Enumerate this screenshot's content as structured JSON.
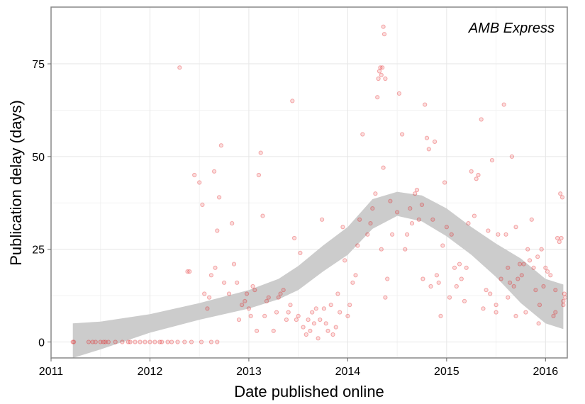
{
  "chart_data": {
    "type": "scatter",
    "annotation": "AMB Express",
    "xlabel": "Date published online",
    "ylabel": "Publication delay (days)",
    "x_ticks": [
      {
        "value": 2011,
        "label": "2011"
      },
      {
        "value": 2012,
        "label": "2012"
      },
      {
        "value": 2013,
        "label": "2013"
      },
      {
        "value": 2014,
        "label": "2014"
      },
      {
        "value": 2015,
        "label": "2015"
      },
      {
        "value": 2016,
        "label": "2016"
      }
    ],
    "y_ticks": [
      {
        "value": 0,
        "label": "0"
      },
      {
        "value": 25,
        "label": "25"
      },
      {
        "value": 50,
        "label": "50"
      },
      {
        "value": 75,
        "label": "75"
      }
    ],
    "xlim": [
      2011.0,
      2016.22
    ],
    "ylim": [
      -4.3,
      90.3
    ],
    "grid": true,
    "point_color": "#e31a1c",
    "band_color": "#cccccc",
    "points": [
      [
        2011.22,
        0
      ],
      [
        2011.23,
        0
      ],
      [
        2011.38,
        0
      ],
      [
        2011.42,
        0
      ],
      [
        2011.45,
        0
      ],
      [
        2011.5,
        0
      ],
      [
        2011.53,
        0
      ],
      [
        2011.55,
        0
      ],
      [
        2011.58,
        0
      ],
      [
        2011.65,
        0
      ],
      [
        2011.72,
        0
      ],
      [
        2011.78,
        0
      ],
      [
        2011.8,
        0
      ],
      [
        2011.85,
        0
      ],
      [
        2011.9,
        0
      ],
      [
        2011.95,
        0
      ],
      [
        2012.0,
        0
      ],
      [
        2012.05,
        0
      ],
      [
        2012.1,
        0
      ],
      [
        2012.12,
        0
      ],
      [
        2012.18,
        0
      ],
      [
        2012.22,
        0
      ],
      [
        2012.28,
        0
      ],
      [
        2012.35,
        0
      ],
      [
        2012.42,
        0
      ],
      [
        2012.52,
        0
      ],
      [
        2012.62,
        0
      ],
      [
        2012.68,
        0
      ],
      [
        2012.3,
        74
      ],
      [
        2012.38,
        19
      ],
      [
        2012.4,
        19
      ],
      [
        2012.45,
        45
      ],
      [
        2012.5,
        43
      ],
      [
        2012.53,
        37
      ],
      [
        2012.55,
        13
      ],
      [
        2012.58,
        9
      ],
      [
        2012.6,
        12
      ],
      [
        2012.62,
        18
      ],
      [
        2012.65,
        46
      ],
      [
        2012.66,
        20
      ],
      [
        2012.68,
        30
      ],
      [
        2012.7,
        39
      ],
      [
        2012.72,
        53
      ],
      [
        2012.75,
        16
      ],
      [
        2012.8,
        13
      ],
      [
        2012.83,
        32
      ],
      [
        2012.85,
        21
      ],
      [
        2012.88,
        16
      ],
      [
        2012.9,
        6
      ],
      [
        2012.93,
        10
      ],
      [
        2012.96,
        11
      ],
      [
        2012.98,
        13
      ],
      [
        2013.0,
        9
      ],
      [
        2013.02,
        7
      ],
      [
        2013.04,
        15
      ],
      [
        2013.06,
        14
      ],
      [
        2013.08,
        3
      ],
      [
        2013.1,
        45
      ],
      [
        2013.12,
        51
      ],
      [
        2013.14,
        34
      ],
      [
        2013.16,
        7
      ],
      [
        2013.18,
        11
      ],
      [
        2013.2,
        12
      ],
      [
        2013.25,
        3
      ],
      [
        2013.28,
        8
      ],
      [
        2013.3,
        12
      ],
      [
        2013.32,
        13
      ],
      [
        2013.35,
        14
      ],
      [
        2013.38,
        6
      ],
      [
        2013.4,
        8
      ],
      [
        2013.42,
        10
      ],
      [
        2013.44,
        65
      ],
      [
        2013.46,
        28
      ],
      [
        2013.48,
        6
      ],
      [
        2013.5,
        7
      ],
      [
        2013.52,
        24
      ],
      [
        2013.55,
        4
      ],
      [
        2013.58,
        2
      ],
      [
        2013.6,
        6
      ],
      [
        2013.62,
        3
      ],
      [
        2013.64,
        8
      ],
      [
        2013.66,
        5
      ],
      [
        2013.68,
        9
      ],
      [
        2013.7,
        1
      ],
      [
        2013.72,
        6
      ],
      [
        2013.74,
        33
      ],
      [
        2013.76,
        9
      ],
      [
        2013.78,
        5
      ],
      [
        2013.8,
        3
      ],
      [
        2013.83,
        10
      ],
      [
        2013.85,
        2
      ],
      [
        2013.88,
        4
      ],
      [
        2013.9,
        13
      ],
      [
        2013.92,
        8
      ],
      [
        2013.95,
        31
      ],
      [
        2013.97,
        22
      ],
      [
        2014.0,
        7
      ],
      [
        2014.02,
        10
      ],
      [
        2014.05,
        16
      ],
      [
        2014.08,
        18
      ],
      [
        2014.1,
        26
      ],
      [
        2014.12,
        33
      ],
      [
        2014.15,
        56
      ],
      [
        2014.2,
        29
      ],
      [
        2014.23,
        32
      ],
      [
        2014.25,
        36
      ],
      [
        2014.28,
        40
      ],
      [
        2014.3,
        66
      ],
      [
        2014.31,
        71
      ],
      [
        2014.32,
        73
      ],
      [
        2014.33,
        74
      ],
      [
        2014.34,
        72
      ],
      [
        2014.35,
        74
      ],
      [
        2014.36,
        85
      ],
      [
        2014.37,
        83
      ],
      [
        2014.38,
        71
      ],
      [
        2014.36,
        47
      ],
      [
        2014.34,
        25
      ],
      [
        2014.38,
        12
      ],
      [
        2014.4,
        17
      ],
      [
        2014.43,
        38
      ],
      [
        2014.45,
        29
      ],
      [
        2014.5,
        35
      ],
      [
        2014.52,
        67
      ],
      [
        2014.55,
        56
      ],
      [
        2014.58,
        25
      ],
      [
        2014.6,
        29
      ],
      [
        2014.63,
        36
      ],
      [
        2014.65,
        32
      ],
      [
        2014.68,
        40
      ],
      [
        2014.7,
        41
      ],
      [
        2014.72,
        33
      ],
      [
        2014.75,
        37
      ],
      [
        2014.76,
        17
      ],
      [
        2014.78,
        64
      ],
      [
        2014.8,
        55
      ],
      [
        2014.82,
        52
      ],
      [
        2014.84,
        15
      ],
      [
        2014.86,
        33
      ],
      [
        2014.88,
        54
      ],
      [
        2014.9,
        18
      ],
      [
        2014.92,
        16
      ],
      [
        2014.94,
        7
      ],
      [
        2014.96,
        26
      ],
      [
        2014.98,
        43
      ],
      [
        2015.0,
        31
      ],
      [
        2015.03,
        12
      ],
      [
        2015.05,
        29
      ],
      [
        2015.08,
        20
      ],
      [
        2015.1,
        15
      ],
      [
        2015.13,
        21
      ],
      [
        2015.15,
        17
      ],
      [
        2015.18,
        11
      ],
      [
        2015.2,
        20
      ],
      [
        2015.22,
        32
      ],
      [
        2015.25,
        46
      ],
      [
        2015.28,
        34
      ],
      [
        2015.3,
        44
      ],
      [
        2015.32,
        45
      ],
      [
        2015.35,
        60
      ],
      [
        2015.37,
        9
      ],
      [
        2015.4,
        14
      ],
      [
        2015.42,
        30
      ],
      [
        2015.44,
        13
      ],
      [
        2015.46,
        49
      ],
      [
        2015.5,
        8
      ],
      [
        2015.52,
        29
      ],
      [
        2015.55,
        17
      ],
      [
        2015.58,
        64
      ],
      [
        2015.6,
        29
      ],
      [
        2015.62,
        20
      ],
      [
        2015.64,
        16
      ],
      [
        2015.66,
        50
      ],
      [
        2015.68,
        15
      ],
      [
        2015.7,
        31
      ],
      [
        2015.72,
        17
      ],
      [
        2015.74,
        21
      ],
      [
        2015.76,
        18
      ],
      [
        2015.78,
        21
      ],
      [
        2015.8,
        8
      ],
      [
        2015.82,
        25
      ],
      [
        2015.84,
        22
      ],
      [
        2015.86,
        33
      ],
      [
        2015.88,
        20
      ],
      [
        2015.9,
        14
      ],
      [
        2015.92,
        23
      ],
      [
        2015.94,
        10
      ],
      [
        2015.96,
        25
      ],
      [
        2015.98,
        15
      ],
      [
        2016.0,
        20
      ],
      [
        2016.02,
        19
      ],
      [
        2016.05,
        18
      ],
      [
        2016.08,
        7
      ],
      [
        2016.1,
        14
      ],
      [
        2016.12,
        28
      ],
      [
        2016.14,
        27
      ],
      [
        2016.15,
        40
      ],
      [
        2016.16,
        28
      ],
      [
        2016.17,
        39
      ],
      [
        2016.18,
        11
      ],
      [
        2016.19,
        13
      ],
      [
        2016.2,
        12
      ],
      [
        2016.18,
        10
      ],
      [
        2016.1,
        8
      ],
      [
        2015.93,
        5
      ],
      [
        2015.7,
        7
      ],
      [
        2015.62,
        12
      ],
      [
        2015.5,
        10
      ]
    ],
    "smooth_band": [
      [
        2011.22,
        5.0,
        -4.3
      ],
      [
        2011.5,
        5.5,
        -2.0
      ],
      [
        2012.0,
        7.5,
        2.5
      ],
      [
        2012.5,
        10.5,
        6.0
      ],
      [
        2013.0,
        14.0,
        9.0
      ],
      [
        2013.3,
        17.0,
        11.5
      ],
      [
        2013.5,
        20.5,
        14.0
      ],
      [
        2013.75,
        26.0,
        19.0
      ],
      [
        2014.0,
        31.0,
        23.5
      ],
      [
        2014.25,
        38.5,
        30.5
      ],
      [
        2014.5,
        40.5,
        34.0
      ],
      [
        2014.75,
        39.5,
        32.5
      ],
      [
        2015.0,
        36.0,
        28.5
      ],
      [
        2015.25,
        31.0,
        23.5
      ],
      [
        2015.5,
        26.5,
        17.5
      ],
      [
        2015.75,
        22.5,
        10.5
      ],
      [
        2016.0,
        17.0,
        5.0
      ],
      [
        2016.18,
        15.5,
        3.5
      ]
    ]
  }
}
